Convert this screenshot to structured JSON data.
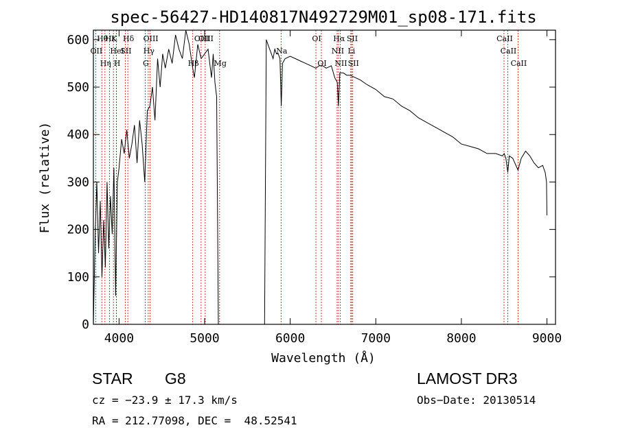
{
  "chart_data": {
    "type": "line",
    "title": "spec-56427-HD140817N492729M01_sp08-171.fits",
    "xlabel": "Wavelength (Å)",
    "ylabel": "Flux (relative)",
    "xlim": [
      3700,
      9100
    ],
    "ylim": [
      0,
      620
    ],
    "xticks": [
      4000,
      5000,
      6000,
      7000,
      8000,
      9000
    ],
    "yticks": [
      0,
      100,
      200,
      300,
      400,
      500,
      600
    ],
    "series": [
      {
        "name": "flux",
        "x": [
          3700,
          3720,
          3740,
          3760,
          3780,
          3800,
          3820,
          3840,
          3860,
          3880,
          3900,
          3920,
          3940,
          3960,
          3980,
          4000,
          4030,
          4060,
          4090,
          4120,
          4150,
          4180,
          4210,
          4240,
          4270,
          4300,
          4330,
          4360,
          4390,
          4420,
          4450,
          4480,
          4510,
          4540,
          4580,
          4620,
          4660,
          4700,
          4740,
          4780,
          4820,
          4860,
          4880,
          4920,
          4960,
          5000,
          5040,
          5080,
          5100,
          5120,
          5140,
          5160,
          5700,
          5720,
          5740,
          5760,
          5780,
          5800,
          5820,
          5840,
          5860,
          5880,
          5895,
          5910,
          5940,
          6000,
          6060,
          6120,
          6180,
          6240,
          6300,
          6340,
          6380,
          6420,
          6480,
          6520,
          6550,
          6563,
          6580,
          6620,
          6660,
          6700,
          6760,
          6820,
          6900,
          7000,
          7100,
          7200,
          7300,
          7400,
          7500,
          7600,
          7700,
          7800,
          7900,
          8000,
          8100,
          8200,
          8300,
          8400,
          8480,
          8500,
          8520,
          8542,
          8560,
          8600,
          8662,
          8700,
          8750,
          8800,
          8850,
          8900,
          8950,
          8980,
          8995,
          9000
        ],
        "values": [
          0,
          180,
          300,
          150,
          260,
          100,
          220,
          120,
          300,
          160,
          270,
          190,
          330,
          60,
          300,
          330,
          390,
          360,
          410,
          350,
          380,
          420,
          340,
          430,
          380,
          300,
          450,
          460,
          500,
          430,
          560,
          500,
          570,
          540,
          580,
          550,
          610,
          580,
          560,
          620,
          590,
          540,
          520,
          590,
          560,
          570,
          580,
          520,
          570,
          510,
          480,
          0,
          0,
          600,
          590,
          580,
          570,
          560,
          580,
          570,
          570,
          560,
          460,
          550,
          560,
          565,
          560,
          555,
          550,
          545,
          540,
          545,
          545,
          540,
          545,
          520,
          510,
          460,
          530,
          530,
          525,
          525,
          520,
          515,
          505,
          495,
          480,
          475,
          460,
          450,
          435,
          425,
          415,
          405,
          395,
          380,
          375,
          370,
          360,
          360,
          355,
          360,
          350,
          320,
          355,
          350,
          325,
          350,
          365,
          355,
          340,
          330,
          335,
          320,
          300,
          230
        ]
      }
    ],
    "lines": [
      "Hθ",
      "OII",
      "Hη",
      "Hε",
      "K",
      "HeI",
      "H",
      "Hδ",
      "SII",
      "OIII",
      "Hγ",
      "G",
      "OIII",
      "Hβ",
      "OIII",
      "Mg",
      "Na",
      "OI",
      "OI",
      "Hα",
      "NII",
      "NII",
      "SII",
      "SII",
      "Li",
      "CaII",
      "CaII",
      "CaII"
    ]
  },
  "info": {
    "obj_class": "STAR",
    "subclass": "G8",
    "survey": "LAMOST DR3",
    "cz": "cz = −23.9 ± 17.3 km/s",
    "obs_date": "Obs−Date: 20130514",
    "coords": "RA = 212.77098, DEC =  48.52541"
  },
  "colors": {
    "axis": "#000000",
    "spectrum": "#000000",
    "line_marker": "#c00000",
    "background": "#ffffff"
  }
}
